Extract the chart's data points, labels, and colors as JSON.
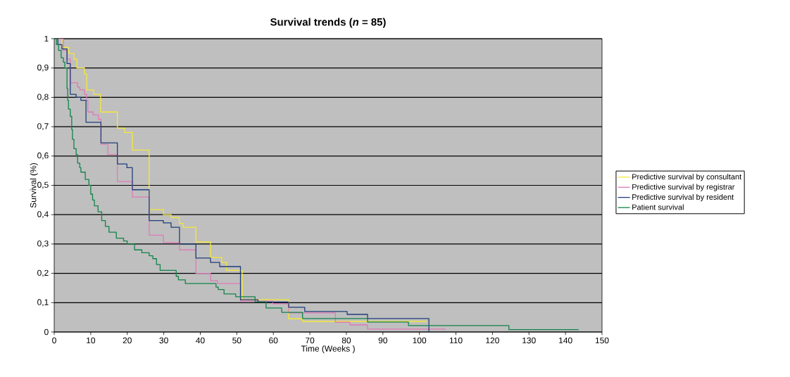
{
  "chart_data": {
    "type": "step",
    "title": "Survival trends (*n* = 85)",
    "xlabel": "Time (Weeks )",
    "ylabel": "Survival (%)",
    "xlim": [
      0,
      150
    ],
    "xticks": [
      0,
      10,
      20,
      30,
      40,
      50,
      60,
      70,
      80,
      90,
      100,
      110,
      120,
      130,
      140,
      150
    ],
    "ylim": [
      0,
      1
    ],
    "yticks": [
      0,
      {
        "value": 0.1,
        "label": "0,1"
      },
      {
        "value": 0.2,
        "label": "0,2"
      },
      {
        "value": 0.3,
        "label": "0,3"
      },
      {
        "value": 0.4,
        "label": "0,4"
      },
      {
        "value": 0.5,
        "label": "0,5"
      },
      {
        "value": 0.6,
        "label": "0,6"
      },
      {
        "value": 0.7,
        "label": "0,7"
      },
      {
        "value": 0.8,
        "label": "0,8"
      },
      {
        "value": 0.9,
        "label": "0,9"
      },
      1
    ],
    "grid": "y",
    "legend": "right",
    "series": [
      {
        "name": "Predictive survival by consultant",
        "color": "#f5e83a",
        "x": [
          0,
          2.1,
          4,
          5.4,
          6.2,
          8.3,
          8.9,
          10.8,
          12.7,
          17.3,
          19.3,
          21.4,
          26,
          29.9,
          32,
          34.3,
          35.3,
          38.8,
          42.8,
          45.9,
          47.2,
          51.5,
          64.2,
          68,
          102
        ],
        "values": [
          1,
          0.97,
          0.95,
          0.93,
          0.9,
          0.88,
          0.825,
          0.81,
          0.75,
          0.695,
          0.68,
          0.62,
          0.417,
          0.4,
          0.39,
          0.37,
          0.357,
          0.307,
          0.254,
          0.237,
          0.21,
          0.11,
          0.045,
          0.036,
          0.036
        ]
      },
      {
        "name": "Predictive survival by registrar",
        "color": "#e07ab8",
        "x": [
          0,
          2.5,
          3.5,
          4.4,
          6.4,
          7,
          8.3,
          8.9,
          9.2,
          10.6,
          12.1,
          12.8,
          14.7,
          17.3,
          21.4,
          26,
          29.9,
          34.3,
          38.8,
          42.8,
          44.7,
          51,
          59.8,
          64.2,
          77,
          81,
          85.8,
          107.2
        ],
        "values": [
          1,
          0.96,
          0.93,
          0.85,
          0.835,
          0.826,
          0.81,
          0.79,
          0.75,
          0.74,
          0.725,
          0.64,
          0.605,
          0.513,
          0.46,
          0.33,
          0.305,
          0.28,
          0.2,
          0.175,
          0.165,
          0.105,
          0.096,
          0.065,
          0.033,
          0.024,
          0.01,
          0.01
        ]
      },
      {
        "name": "Predictive survival by resident",
        "color": "#1f3f7a",
        "x": [
          0,
          1,
          2.1,
          3.5,
          4.4,
          6,
          7.3,
          8.7,
          12.8,
          17.3,
          19.9,
          21.4,
          26,
          29.9,
          32,
          34.3,
          38.8,
          42.8,
          45.3,
          51,
          55.8,
          64.2,
          68.6,
          80.2,
          85.8,
          102.6
        ],
        "values": [
          1,
          0.98,
          0.965,
          0.915,
          0.81,
          0.8,
          0.79,
          0.715,
          0.645,
          0.573,
          0.56,
          0.485,
          0.38,
          0.372,
          0.357,
          0.3,
          0.252,
          0.237,
          0.223,
          0.11,
          0.102,
          0.084,
          0.07,
          0.06,
          0.046,
          0
        ]
      },
      {
        "name": "Patient survival",
        "color": "#10844a",
        "x": [
          0,
          0.6,
          1.2,
          1.9,
          2.5,
          2.9,
          3.5,
          3.7,
          3.9,
          4.4,
          4.8,
          5,
          5.4,
          6,
          6.4,
          7,
          7.3,
          8.5,
          9.5,
          10,
          10.5,
          11,
          12,
          13,
          14,
          15,
          17,
          19,
          20,
          22,
          24,
          26,
          27,
          28,
          29,
          33.4,
          34,
          35.9,
          44.3,
          44.9,
          46.5,
          49.7,
          55,
          58,
          62.3,
          68,
          85.8,
          97,
          124.5,
          143.6
        ],
        "values": [
          1,
          0.98,
          0.96,
          0.935,
          0.92,
          0.9,
          0.83,
          0.79,
          0.76,
          0.735,
          0.69,
          0.657,
          0.625,
          0.605,
          0.576,
          0.56,
          0.545,
          0.52,
          0.5,
          0.47,
          0.45,
          0.43,
          0.41,
          0.38,
          0.36,
          0.34,
          0.32,
          0.31,
          0.3,
          0.28,
          0.27,
          0.26,
          0.25,
          0.23,
          0.21,
          0.19,
          0.178,
          0.165,
          0.153,
          0.145,
          0.13,
          0.12,
          0.103,
          0.082,
          0.067,
          0.046,
          0.034,
          0.022,
          0.008,
          0.008
        ]
      }
    ]
  }
}
